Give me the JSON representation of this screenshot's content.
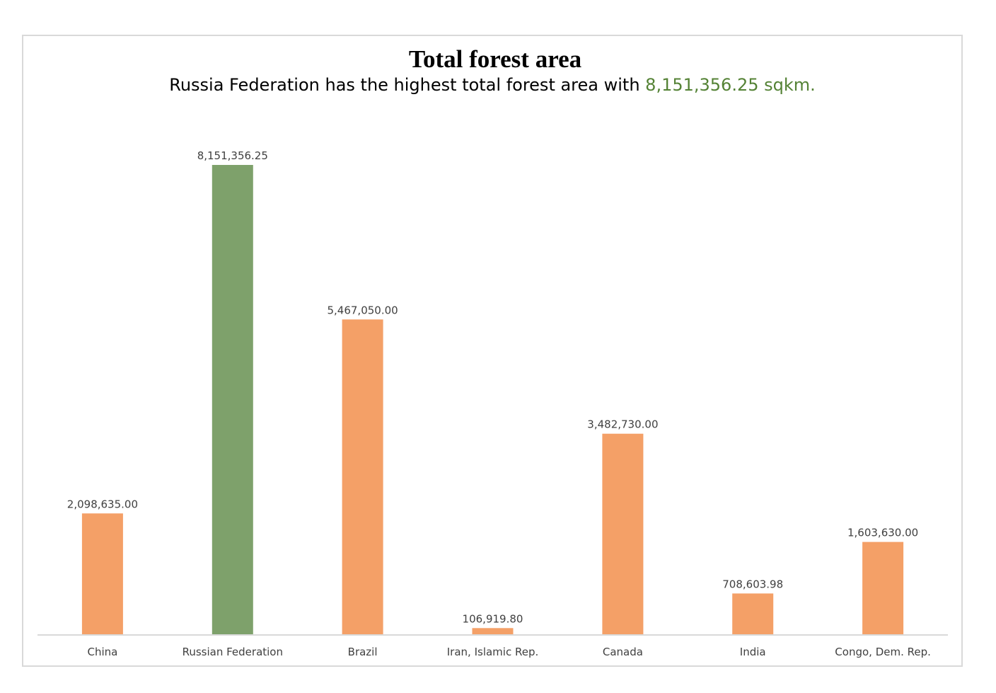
{
  "chart_data": {
    "type": "bar",
    "title": "Total forest area",
    "subtitle": {
      "prefix": "Russia Federation has the highest total forest area with ",
      "highlight": "8,151,356.25 sqkm."
    },
    "xlabel": "",
    "ylabel": "",
    "ylim": [
      0,
      8151356.25
    ],
    "grid": false,
    "legend": "none",
    "categories": [
      "China",
      "Russian Federation",
      "Brazil",
      "Iran, Islamic Rep.",
      "Canada",
      "India",
      "Congo, Dem. Rep."
    ],
    "values": [
      2098635.0,
      8151356.25,
      5467050.0,
      106919.8,
      3482730.0,
      708603.98,
      1603630.0
    ],
    "data_labels": [
      "2,098,635.00",
      "8,151,356.25",
      "5,467,050.00",
      "106,919.80",
      "3,482,730.00",
      "708,603.98",
      "1,603,630.00"
    ],
    "highlight_category": "Russian Federation",
    "colors": {
      "default_bar": "#f4a067",
      "highlight_bar": "#7ea16b",
      "highlight_text": "#548235",
      "axis": "#d9d9d9"
    }
  }
}
